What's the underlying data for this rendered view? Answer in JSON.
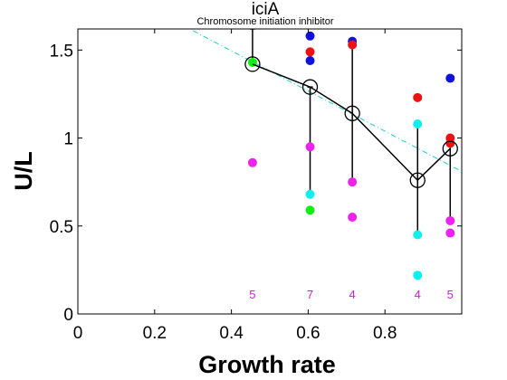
{
  "chart_data": {
    "type": "scatter",
    "title": "iciA",
    "subtitle": "Chromosome initiation inhibitor",
    "xlabel": "Growth rate",
    "ylabel": "U/L",
    "xlim": [
      0,
      1.0
    ],
    "ylim": [
      0,
      1.62
    ],
    "x_ticks": [
      0,
      0.2,
      0.4,
      0.6,
      0.8
    ],
    "x_tick_labels": [
      "0",
      "0.2",
      "0.4",
      "0.6",
      "0.8"
    ],
    "y_ticks": [
      0,
      0.5,
      1,
      1.5
    ],
    "y_tick_labels": [
      "0",
      "0.5",
      "1",
      "1.5"
    ],
    "grid": false,
    "legend": "none",
    "colors": {
      "red": "#ee1111",
      "blue": "#1111dd",
      "magenta": "#ee22ee",
      "cyan": "#11eeee",
      "green": "#11ee11",
      "line": "#000000",
      "fit": "#22cccc",
      "count": "#cc22cc"
    },
    "points": [
      {
        "x": 0.455,
        "y": 1.43,
        "color": "green"
      },
      {
        "x": 0.455,
        "y": 0.86,
        "color": "magenta"
      },
      {
        "x": 0.605,
        "y": 1.58,
        "color": "blue"
      },
      {
        "x": 0.605,
        "y": 1.49,
        "color": "red"
      },
      {
        "x": 0.605,
        "y": 1.44,
        "color": "blue"
      },
      {
        "x": 0.605,
        "y": 0.95,
        "color": "magenta"
      },
      {
        "x": 0.605,
        "y": 0.68,
        "color": "cyan"
      },
      {
        "x": 0.605,
        "y": 0.59,
        "color": "green"
      },
      {
        "x": 0.715,
        "y": 1.55,
        "color": "blue"
      },
      {
        "x": 0.715,
        "y": 1.53,
        "color": "red"
      },
      {
        "x": 0.715,
        "y": 0.75,
        "color": "magenta"
      },
      {
        "x": 0.715,
        "y": 0.55,
        "color": "magenta"
      },
      {
        "x": 0.885,
        "y": 1.23,
        "color": "red"
      },
      {
        "x": 0.885,
        "y": 1.08,
        "color": "cyan"
      },
      {
        "x": 0.885,
        "y": 0.45,
        "color": "cyan"
      },
      {
        "x": 0.885,
        "y": 0.22,
        "color": "cyan"
      },
      {
        "x": 0.97,
        "y": 1.34,
        "color": "blue"
      },
      {
        "x": 0.97,
        "y": 1.0,
        "color": "red"
      },
      {
        "x": 0.97,
        "y": 0.97,
        "color": "red"
      },
      {
        "x": 0.97,
        "y": 0.53,
        "color": "magenta"
      },
      {
        "x": 0.97,
        "y": 0.46,
        "color": "magenta"
      }
    ],
    "mean_series": [
      {
        "x": 0.455,
        "y": 1.42
      },
      {
        "x": 0.605,
        "y": 1.29
      },
      {
        "x": 0.715,
        "y": 1.14
      },
      {
        "x": 0.885,
        "y": 0.76
      },
      {
        "x": 0.97,
        "y": 0.94
      }
    ],
    "error_bars": [
      {
        "x": 0.455,
        "low": 1.42,
        "high": 1.62
      },
      {
        "x": 0.605,
        "low": 0.68,
        "high": 1.29
      },
      {
        "x": 0.715,
        "low": 0.75,
        "high": 1.53
      },
      {
        "x": 0.885,
        "low": 0.45,
        "high": 1.08
      },
      {
        "x": 0.97,
        "low": 0.53,
        "high": 0.97
      }
    ],
    "fit_line": {
      "x": [
        0.3,
        1.0
      ],
      "y": [
        1.61,
        0.81
      ]
    },
    "counts": [
      {
        "x": 0.455,
        "label": "5"
      },
      {
        "x": 0.605,
        "label": "7"
      },
      {
        "x": 0.715,
        "label": "4"
      },
      {
        "x": 0.885,
        "label": "4"
      },
      {
        "x": 0.97,
        "label": "5"
      }
    ]
  }
}
